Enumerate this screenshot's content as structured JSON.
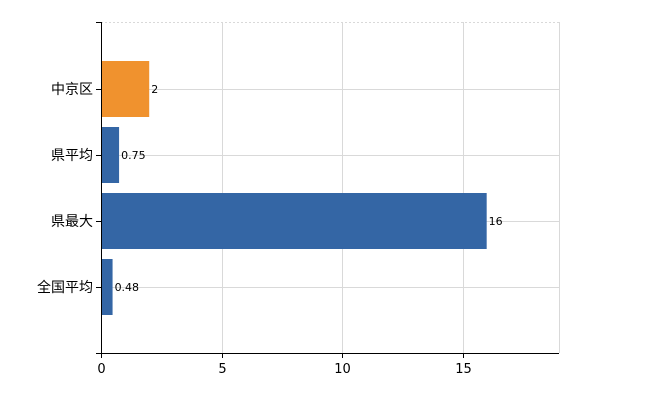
{
  "chart_data": {
    "type": "bar",
    "orientation": "horizontal",
    "categories": [
      "中京区",
      "県平均",
      "県最大",
      "全国平均"
    ],
    "values": [
      2,
      0.75,
      16,
      0.48
    ],
    "value_labels": [
      "2",
      "0.75",
      "16",
      "0.48"
    ],
    "bar_colors": [
      "#f0922e",
      "#3466a5",
      "#3466a5",
      "#3466a5"
    ],
    "xlim": [
      0,
      19
    ],
    "xticks": [
      0,
      5,
      10,
      15
    ],
    "xtick_labels": [
      "0",
      "5",
      "10",
      "15"
    ],
    "grid": true,
    "grid_color": "#d9d9d9",
    "title": "",
    "xlabel": "",
    "ylabel": ""
  }
}
